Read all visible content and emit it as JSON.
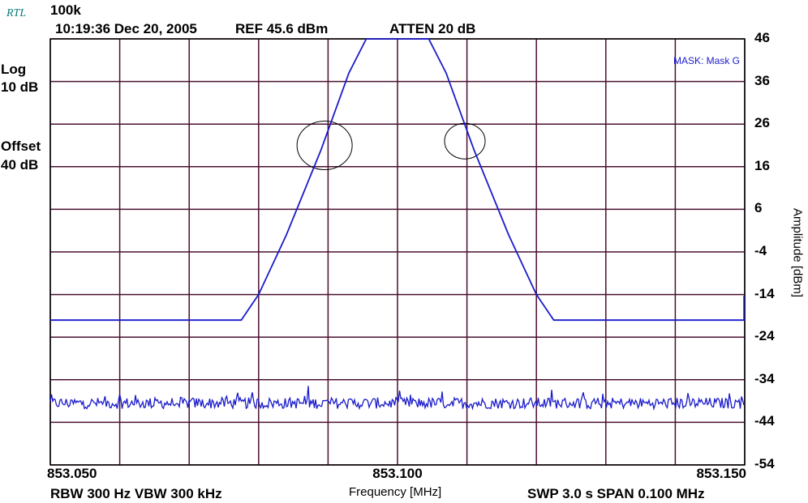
{
  "header": {
    "logo": "RTL",
    "title": "100k",
    "datetime": "10:19:36 Dec 20, 2005",
    "ref": "REF 45.6 dBm",
    "atten": "ATTEN 20 dB"
  },
  "left_labels": {
    "scale_mode": "Log",
    "scale_div": "10 dB",
    "offset_label": "Offset",
    "offset_value": "40 dB"
  },
  "footer": {
    "rbw_vbw": "RBW 300 Hz  VBW 300 kHz",
    "swp_span": "SWP 3.0 s   SPAN 0.100 MHz"
  },
  "colors": {
    "grid": "#4a1030",
    "trace": "#1a1acc",
    "logo": "#0b7a7a"
  },
  "chart_data": {
    "type": "line",
    "xlabel": "Frequency [MHz]",
    "ylabel": "Amplitude [dBm]",
    "xlim": [
      853.05,
      853.15
    ],
    "ylim": [
      -54,
      46
    ],
    "yticks": [
      "46",
      "36",
      "26",
      "16",
      "6",
      "-4",
      "-14",
      "-24",
      "-34",
      "-44",
      "-54"
    ],
    "xticks": [
      "853.050",
      "853.100",
      "853.150"
    ],
    "grid": true,
    "legend": "MASK: Mask G",
    "series": [
      {
        "name": "MASK: Mask G",
        "x": [
          853.05,
          853.0775,
          853.08,
          853.084,
          853.089,
          853.093,
          853.0955,
          853.1045,
          853.107,
          853.111,
          853.116,
          853.12,
          853.1225,
          853.15
        ],
        "y": [
          -20,
          -20,
          -14,
          0,
          20,
          38,
          46,
          46,
          38,
          20,
          0,
          -14,
          -20,
          -20
        ]
      },
      {
        "name": "",
        "x": [
          853.05,
          853.06,
          853.07,
          853.08,
          853.09,
          853.1,
          853.11,
          853.12,
          853.13,
          853.14,
          853.15
        ],
        "y": [
          -39.5,
          -39.5,
          -39.5,
          -39.5,
          -39.5,
          -39.5,
          -39.5,
          -39.5,
          -39.5,
          -39.5,
          -39.5
        ]
      }
    ],
    "annotations": [
      {
        "type": "ellipse",
        "x": 853.0895,
        "y": 21
      },
      {
        "type": "ellipse",
        "x": 853.1097,
        "y": 22
      }
    ]
  }
}
